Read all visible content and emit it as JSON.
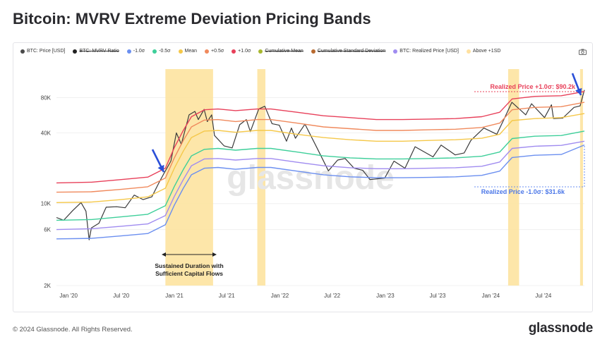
{
  "title": "Bitcoin: MVRV Extreme Deviation Pricing Bands",
  "legend": [
    {
      "label": "BTC: Price [USD]",
      "color": "#4a4a4a",
      "struck": false
    },
    {
      "label": "BTC: MVRV Ratio",
      "color": "#222222",
      "struck": true
    },
    {
      "label": "-1.0σ",
      "color": "#6b8ff0",
      "struck": false
    },
    {
      "label": "-0.5σ",
      "color": "#3ecf9a",
      "struck": false
    },
    {
      "label": "Mean",
      "color": "#f5c84a",
      "struck": false
    },
    {
      "label": "+0.5σ",
      "color": "#f08a5d",
      "struck": false
    },
    {
      "label": "+1.0σ",
      "color": "#e8405a",
      "struck": false
    },
    {
      "label": "Cumulative Mean",
      "color": "#a8b830",
      "struck": true
    },
    {
      "label": "Cumulative Standard Deviation",
      "color": "#b86a30",
      "struck": true
    },
    {
      "label": "BTC: Realized Price [USD]",
      "color": "#a08cf0",
      "struck": false
    },
    {
      "label": "Above +1SD",
      "color": "#ffe1a0",
      "struck": false
    }
  ],
  "annotations": {
    "upper": "Realized Price +1.0σ: $90.2k",
    "lower": "Realized Price -1.0σ: $31.6k",
    "duration_line1": "Sustained Duration with",
    "duration_line2": "Sufficient Capital Flows"
  },
  "watermark": "glassnode",
  "footer": {
    "copyright": "© 2024 Glassnode. All Rights Reserved.",
    "logo": "glassnode"
  },
  "chart_data": {
    "type": "line",
    "y_scale": "log",
    "ylim": [
      2000,
      140000
    ],
    "y_ticks": [
      {
        "value": 2000,
        "label": "2K"
      },
      {
        "value": 6000,
        "label": "6K"
      },
      {
        "value": 10000,
        "label": "10K"
      },
      {
        "value": 40000,
        "label": "40K"
      },
      {
        "value": 80000,
        "label": "80K"
      }
    ],
    "x_range": [
      "2019-11-20",
      "2024-11-20"
    ],
    "x_ticks": [
      {
        "date": "2020-01-01",
        "label": "Jan '20"
      },
      {
        "date": "2020-07-01",
        "label": "Jul '20"
      },
      {
        "date": "2021-01-01",
        "label": "Jan '21"
      },
      {
        "date": "2021-07-01",
        "label": "Jul '21"
      },
      {
        "date": "2022-01-01",
        "label": "Jan '22"
      },
      {
        "date": "2022-07-01",
        "label": "Jul '22"
      },
      {
        "date": "2023-01-01",
        "label": "Jan '23"
      },
      {
        "date": "2023-07-01",
        "label": "Jul '23"
      },
      {
        "date": "2024-01-01",
        "label": "Jan '24"
      },
      {
        "date": "2024-07-01",
        "label": "Jul '24"
      }
    ],
    "highlight_periods": [
      [
        "2020-12-01",
        "2021-05-15"
      ],
      [
        "2021-10-15",
        "2021-11-12"
      ],
      [
        "2024-03-01",
        "2024-04-08"
      ],
      [
        "2024-11-05",
        "2024-11-15"
      ]
    ],
    "series": [
      {
        "name": "BTC: Price [USD]",
        "color": "#3a3a3a",
        "points": [
          [
            "2019-11-20",
            7600
          ],
          [
            "2019-12-15",
            7200
          ],
          [
            "2020-01-15",
            8700
          ],
          [
            "2020-02-13",
            10200
          ],
          [
            "2020-03-01",
            8600
          ],
          [
            "2020-03-12",
            4900
          ],
          [
            "2020-03-20",
            6200
          ],
          [
            "2020-04-15",
            6800
          ],
          [
            "2020-05-10",
            9300
          ],
          [
            "2020-06-15",
            9400
          ],
          [
            "2020-07-15",
            9200
          ],
          [
            "2020-08-15",
            11800
          ],
          [
            "2020-09-15",
            10800
          ],
          [
            "2020-10-15",
            11400
          ],
          [
            "2020-11-10",
            15300
          ],
          [
            "2020-12-01",
            19000
          ],
          [
            "2020-12-20",
            23000
          ],
          [
            "2021-01-08",
            40000
          ],
          [
            "2021-01-25",
            32000
          ],
          [
            "2021-02-21",
            57000
          ],
          [
            "2021-03-13",
            61000
          ],
          [
            "2021-03-25",
            52000
          ],
          [
            "2021-04-14",
            63500
          ],
          [
            "2021-04-25",
            50000
          ],
          [
            "2021-05-10",
            57000
          ],
          [
            "2021-05-20",
            38000
          ],
          [
            "2021-06-22",
            31000
          ],
          [
            "2021-07-20",
            29800
          ],
          [
            "2021-08-15",
            47000
          ],
          [
            "2021-09-07",
            52000
          ],
          [
            "2021-09-21",
            41000
          ],
          [
            "2021-10-20",
            64000
          ],
          [
            "2021-11-10",
            67500
          ],
          [
            "2021-12-05",
            48000
          ],
          [
            "2021-12-30",
            46500
          ],
          [
            "2022-01-24",
            34000
          ],
          [
            "2022-02-10",
            44000
          ],
          [
            "2022-02-24",
            36000
          ],
          [
            "2022-03-29",
            47500
          ],
          [
            "2022-05-09",
            30000
          ],
          [
            "2022-06-18",
            19000
          ],
          [
            "2022-07-20",
            23500
          ],
          [
            "2022-08-15",
            24200
          ],
          [
            "2022-09-15",
            20000
          ],
          [
            "2022-10-15",
            19200
          ],
          [
            "2022-11-09",
            16000
          ],
          [
            "2022-12-30",
            16500
          ],
          [
            "2023-01-31",
            23000
          ],
          [
            "2023-03-10",
            20000
          ],
          [
            "2023-04-14",
            30500
          ],
          [
            "2023-06-15",
            25000
          ],
          [
            "2023-07-13",
            31500
          ],
          [
            "2023-08-31",
            26000
          ],
          [
            "2023-10-01",
            27000
          ],
          [
            "2023-10-24",
            34500
          ],
          [
            "2023-12-08",
            44000
          ],
          [
            "2024-01-22",
            39000
          ],
          [
            "2024-02-15",
            52000
          ],
          [
            "2024-03-14",
            73000
          ],
          [
            "2024-05-01",
            57000
          ],
          [
            "2024-05-21",
            71000
          ],
          [
            "2024-07-05",
            54000
          ],
          [
            "2024-07-29",
            69500
          ],
          [
            "2024-08-05",
            53000
          ],
          [
            "2024-09-06",
            53500
          ],
          [
            "2024-10-15",
            66000
          ],
          [
            "2024-11-05",
            68000
          ],
          [
            "2024-11-20",
            93000
          ]
        ]
      },
      {
        "name": "+1.0σ",
        "color": "#e8405a",
        "points": [
          [
            "2019-11-20",
            15000
          ],
          [
            "2020-03-20",
            15200
          ],
          [
            "2020-07-01",
            16000
          ],
          [
            "2020-10-01",
            16800
          ],
          [
            "2020-12-01",
            20000
          ],
          [
            "2021-01-01",
            30000
          ],
          [
            "2021-02-01",
            42000
          ],
          [
            "2021-03-01",
            55000
          ],
          [
            "2021-04-15",
            63000
          ],
          [
            "2021-06-01",
            64000
          ],
          [
            "2021-08-01",
            62000
          ],
          [
            "2021-10-15",
            64000
          ],
          [
            "2021-12-01",
            64000
          ],
          [
            "2022-03-01",
            60000
          ],
          [
            "2022-06-01",
            56000
          ],
          [
            "2022-09-01",
            54000
          ],
          [
            "2022-12-01",
            52000
          ],
          [
            "2023-03-01",
            52000
          ],
          [
            "2023-06-01",
            52500
          ],
          [
            "2023-09-01",
            53000
          ],
          [
            "2023-12-01",
            55000
          ],
          [
            "2024-02-01",
            60000
          ],
          [
            "2024-03-15",
            78000
          ],
          [
            "2024-06-01",
            82000
          ],
          [
            "2024-09-01",
            83000
          ],
          [
            "2024-11-20",
            90200
          ]
        ]
      },
      {
        "name": "+0.5σ",
        "color": "#f08a5d",
        "points": [
          [
            "2019-11-20",
            12500
          ],
          [
            "2020-03-20",
            12600
          ],
          [
            "2020-07-01",
            13200
          ],
          [
            "2020-10-01",
            13900
          ],
          [
            "2020-12-01",
            16500
          ],
          [
            "2021-01-01",
            24500
          ],
          [
            "2021-02-01",
            34500
          ],
          [
            "2021-03-01",
            45000
          ],
          [
            "2021-04-15",
            51500
          ],
          [
            "2021-06-01",
            52000
          ],
          [
            "2021-08-01",
            50000
          ],
          [
            "2021-10-15",
            52000
          ],
          [
            "2021-12-01",
            52000
          ],
          [
            "2022-03-01",
            48500
          ],
          [
            "2022-06-01",
            45000
          ],
          [
            "2022-09-01",
            43500
          ],
          [
            "2022-12-01",
            42000
          ],
          [
            "2023-03-01",
            42000
          ],
          [
            "2023-06-01",
            42500
          ],
          [
            "2023-09-01",
            43000
          ],
          [
            "2023-12-01",
            44500
          ],
          [
            "2024-02-01",
            48500
          ],
          [
            "2024-03-15",
            63000
          ],
          [
            "2024-06-01",
            66000
          ],
          [
            "2024-09-01",
            67000
          ],
          [
            "2024-11-20",
            73000
          ]
        ]
      },
      {
        "name": "Mean",
        "color": "#f5c84a",
        "points": [
          [
            "2019-11-20",
            10200
          ],
          [
            "2020-03-20",
            10300
          ],
          [
            "2020-07-01",
            10800
          ],
          [
            "2020-10-01",
            11400
          ],
          [
            "2020-12-01",
            13500
          ],
          [
            "2021-01-01",
            20000
          ],
          [
            "2021-02-01",
            28000
          ],
          [
            "2021-03-01",
            36500
          ],
          [
            "2021-04-15",
            41500
          ],
          [
            "2021-06-01",
            42000
          ],
          [
            "2021-08-01",
            40500
          ],
          [
            "2021-10-15",
            42000
          ],
          [
            "2021-12-01",
            42000
          ],
          [
            "2022-03-01",
            39000
          ],
          [
            "2022-06-01",
            36500
          ],
          [
            "2022-09-01",
            35000
          ],
          [
            "2022-12-01",
            34000
          ],
          [
            "2023-03-01",
            34000
          ],
          [
            "2023-06-01",
            34500
          ],
          [
            "2023-09-01",
            35000
          ],
          [
            "2023-12-01",
            36000
          ],
          [
            "2024-02-01",
            39000
          ],
          [
            "2024-03-15",
            51000
          ],
          [
            "2024-06-01",
            53000
          ],
          [
            "2024-09-01",
            54000
          ],
          [
            "2024-11-20",
            58500
          ]
        ]
      },
      {
        "name": "-0.5σ",
        "color": "#3ecf9a",
        "points": [
          [
            "2019-11-20",
            7200
          ],
          [
            "2020-03-20",
            7300
          ],
          [
            "2020-07-01",
            7700
          ],
          [
            "2020-10-01",
            8100
          ],
          [
            "2020-12-01",
            9600
          ],
          [
            "2021-01-01",
            14000
          ],
          [
            "2021-02-01",
            19500
          ],
          [
            "2021-03-01",
            25500
          ],
          [
            "2021-04-15",
            29000
          ],
          [
            "2021-06-01",
            29500
          ],
          [
            "2021-08-01",
            28500
          ],
          [
            "2021-10-15",
            29500
          ],
          [
            "2021-12-01",
            29500
          ],
          [
            "2022-03-01",
            27500
          ],
          [
            "2022-06-01",
            25500
          ],
          [
            "2022-09-01",
            24500
          ],
          [
            "2022-12-01",
            24000
          ],
          [
            "2023-03-01",
            24000
          ],
          [
            "2023-06-01",
            24200
          ],
          [
            "2023-09-01",
            24500
          ],
          [
            "2023-12-01",
            25300
          ],
          [
            "2024-02-01",
            27500
          ],
          [
            "2024-03-15",
            35800
          ],
          [
            "2024-06-01",
            37500
          ],
          [
            "2024-09-01",
            38000
          ],
          [
            "2024-11-20",
            41500
          ]
        ]
      },
      {
        "name": "BTC: Realized Price [USD]",
        "color": "#a08cf0",
        "points": [
          [
            "2019-11-20",
            6000
          ],
          [
            "2020-03-20",
            6100
          ],
          [
            "2020-07-01",
            6400
          ],
          [
            "2020-10-01",
            6700
          ],
          [
            "2020-12-01",
            7900
          ],
          [
            "2021-01-01",
            11500
          ],
          [
            "2021-02-01",
            16000
          ],
          [
            "2021-03-01",
            21000
          ],
          [
            "2021-04-15",
            24000
          ],
          [
            "2021-06-01",
            24200
          ],
          [
            "2021-08-01",
            23500
          ],
          [
            "2021-10-15",
            24200
          ],
          [
            "2021-12-01",
            24200
          ],
          [
            "2022-03-01",
            22500
          ],
          [
            "2022-06-01",
            21000
          ],
          [
            "2022-09-01",
            20200
          ],
          [
            "2022-12-01",
            19800
          ],
          [
            "2023-03-01",
            19800
          ],
          [
            "2023-06-01",
            20000
          ],
          [
            "2023-09-01",
            20200
          ],
          [
            "2023-12-01",
            20800
          ],
          [
            "2024-02-01",
            22600
          ],
          [
            "2024-03-15",
            29500
          ],
          [
            "2024-06-01",
            30800
          ],
          [
            "2024-09-01",
            31300
          ],
          [
            "2024-11-20",
            34000
          ]
        ]
      },
      {
        "name": "-1.0σ",
        "color": "#6b8ff0",
        "points": [
          [
            "2019-11-20",
            5000
          ],
          [
            "2020-03-20",
            5050
          ],
          [
            "2020-07-01",
            5300
          ],
          [
            "2020-10-01",
            5550
          ],
          [
            "2020-12-01",
            6600
          ],
          [
            "2021-01-01",
            9700
          ],
          [
            "2021-02-01",
            13500
          ],
          [
            "2021-03-01",
            17600
          ],
          [
            "2021-04-15",
            20000
          ],
          [
            "2021-06-01",
            20300
          ],
          [
            "2021-08-01",
            19600
          ],
          [
            "2021-10-15",
            20300
          ],
          [
            "2021-12-01",
            20300
          ],
          [
            "2022-03-01",
            18900
          ],
          [
            "2022-06-01",
            17600
          ],
          [
            "2022-09-01",
            16900
          ],
          [
            "2022-12-01",
            16600
          ],
          [
            "2023-03-01",
            16600
          ],
          [
            "2023-06-01",
            16700
          ],
          [
            "2023-09-01",
            16900
          ],
          [
            "2023-12-01",
            17400
          ],
          [
            "2024-02-01",
            18900
          ],
          [
            "2024-03-15",
            24700
          ],
          [
            "2024-06-01",
            25800
          ],
          [
            "2024-09-01",
            26200
          ],
          [
            "2024-11-20",
            31600
          ]
        ]
      }
    ]
  }
}
